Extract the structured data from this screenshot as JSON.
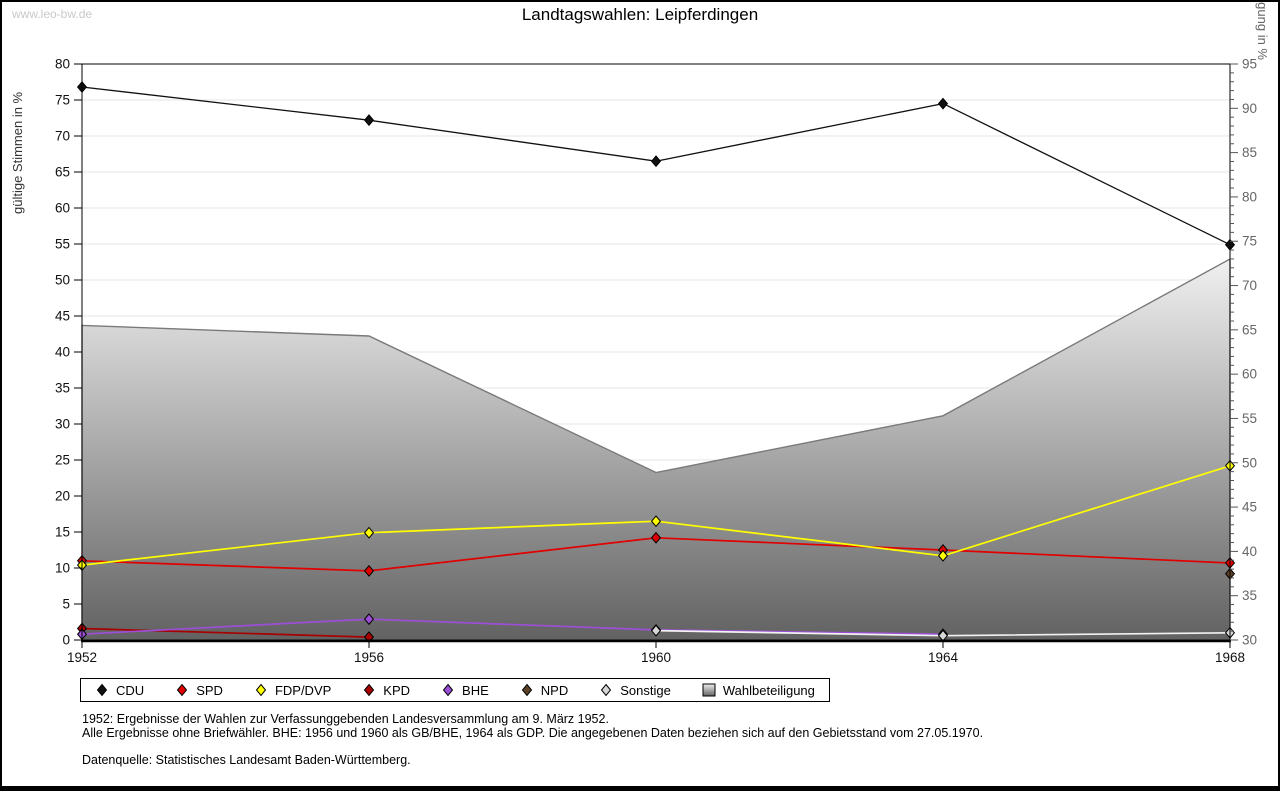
{
  "watermark": "www.leo-bw.de",
  "title": "Landtagswahlen: Leipferdingen",
  "chart_data": {
    "type": "line",
    "title": "Landtagswahlen: Leipferdingen",
    "x": [
      1952,
      1956,
      1960,
      1964,
      1968
    ],
    "left_axis": {
      "label": "gültige Stimmen in %",
      "min": 0,
      "max": 80,
      "tick_step": 5
    },
    "right_axis": {
      "label": "Wahlbeteiligung in %",
      "min": 30,
      "max": 95,
      "tick_step": 5,
      "minor_step": 1
    },
    "grid": "horizontal",
    "legend_position": "bottom",
    "series": [
      {
        "name": "CDU",
        "axis": "left",
        "color": "#111111",
        "line_width": 1.3,
        "values": [
          76.8,
          72.2,
          66.5,
          74.5,
          54.9
        ]
      },
      {
        "name": "SPD",
        "axis": "left",
        "color": "#e10000",
        "line_width": 1.7,
        "values": [
          11.0,
          9.6,
          14.2,
          12.5,
          10.7
        ]
      },
      {
        "name": "FDP/DVP",
        "axis": "left",
        "color": "#ffff00",
        "line_width": 1.7,
        "values": [
          10.4,
          14.9,
          16.5,
          11.7,
          24.2
        ]
      },
      {
        "name": "KPD",
        "axis": "left",
        "color": "#a80000",
        "line_width": 1.7,
        "values": [
          1.6,
          0.4,
          null,
          null,
          null
        ]
      },
      {
        "name": "BHE",
        "axis": "left",
        "color": "#9c4fd6",
        "line_width": 1.7,
        "values": [
          0.8,
          2.9,
          1.4,
          0.8,
          null
        ]
      },
      {
        "name": "NPD",
        "axis": "left",
        "color": "#5e4228",
        "line_width": 1.7,
        "values": [
          null,
          null,
          null,
          null,
          9.2
        ]
      },
      {
        "name": "Sonstige",
        "axis": "left",
        "color": "#f2f2f2",
        "marker_fill": "#d6d6d6",
        "line_width": 1.7,
        "values": [
          null,
          null,
          1.3,
          0.6,
          1.0
        ]
      }
    ],
    "area_series": {
      "name": "Wahlbeteiligung",
      "axis": "right",
      "values": [
        65.5,
        64.3,
        48.9,
        55.3,
        73.0
      ],
      "fill_top": "#f0f0f0",
      "fill_bottom": "#626262",
      "stroke": "#7a7a7a"
    }
  },
  "footnotes": {
    "line1": "1952: Ergebnisse der Wahlen zur Verfassunggebenden Landesversammlung am 9. März 1952.",
    "line2": "Alle Ergebnisse ohne Briefwähler. BHE: 1956 und 1960 als GB/BHE, 1964 als GDP. Die angegebenen Daten beziehen sich auf den Gebietsstand vom 27.05.1970.",
    "source": "Datenquelle: Statistisches Landesamt Baden-Württemberg."
  }
}
